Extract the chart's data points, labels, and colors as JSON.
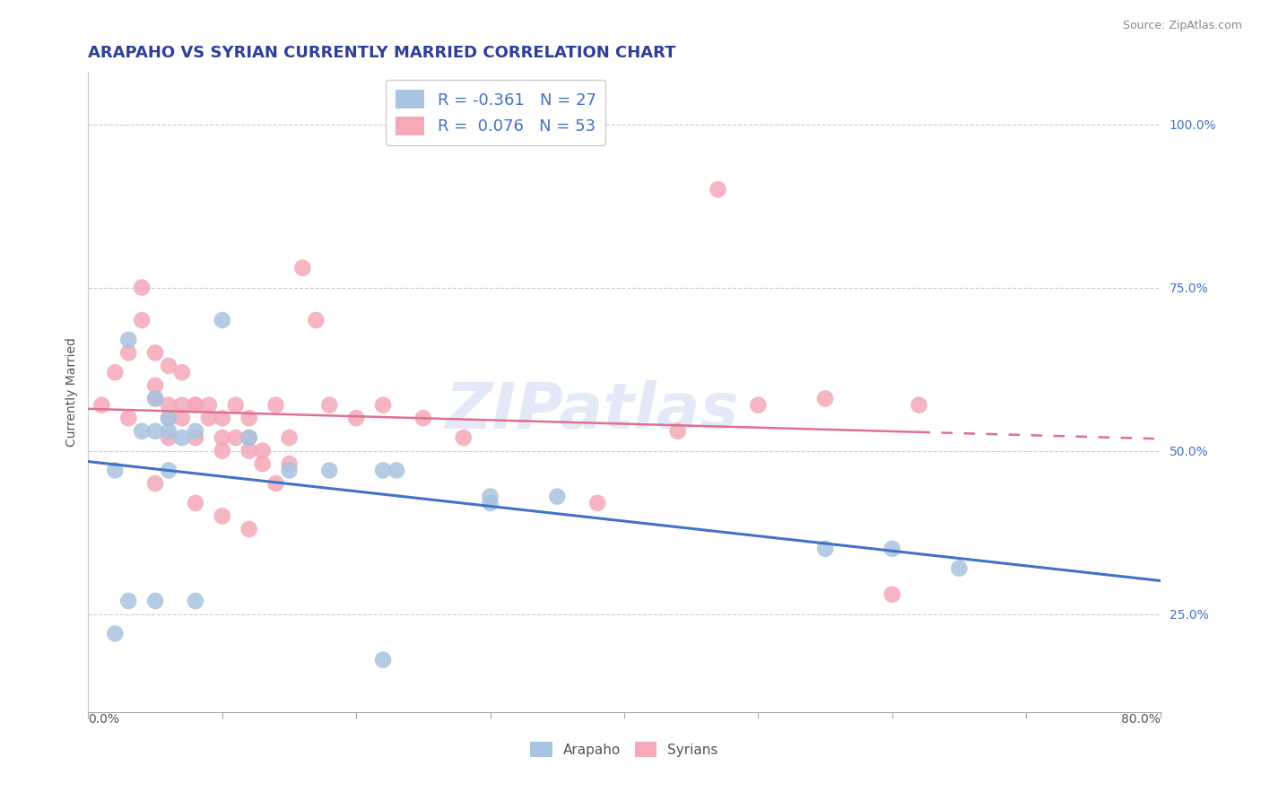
{
  "title": "ARAPAHO VS SYRIAN CURRENTLY MARRIED CORRELATION CHART",
  "source": "Source: ZipAtlas.com",
  "ylabel": "Currently Married",
  "ytick_labels": [
    "100.0%",
    "75.0%",
    "50.0%",
    "25.0%"
  ],
  "ytick_values": [
    1.0,
    0.75,
    0.5,
    0.25
  ],
  "xlim": [
    0.0,
    0.8
  ],
  "ylim": [
    0.1,
    1.08
  ],
  "arapaho_color": "#a8c4e0",
  "syrians_color": "#f4a8b8",
  "arapaho_line_color": "#4472c4",
  "syrians_line_color": "#e07090",
  "arapaho_x": [
    0.02,
    0.03,
    0.04,
    0.05,
    0.05,
    0.06,
    0.06,
    0.07,
    0.08,
    0.1,
    0.12,
    0.15,
    0.18,
    0.22,
    0.23,
    0.3,
    0.3,
    0.35,
    0.55,
    0.6,
    0.65,
    0.02,
    0.05,
    0.08,
    0.22,
    0.03,
    0.06
  ],
  "arapaho_y": [
    0.47,
    0.67,
    0.53,
    0.58,
    0.53,
    0.55,
    0.47,
    0.52,
    0.53,
    0.7,
    0.52,
    0.47,
    0.47,
    0.47,
    0.47,
    0.43,
    0.42,
    0.43,
    0.35,
    0.35,
    0.32,
    0.22,
    0.27,
    0.27,
    0.18,
    0.27,
    0.53
  ],
  "syrians_x": [
    0.01,
    0.02,
    0.03,
    0.03,
    0.04,
    0.04,
    0.05,
    0.05,
    0.05,
    0.06,
    0.06,
    0.06,
    0.06,
    0.07,
    0.07,
    0.07,
    0.08,
    0.08,
    0.08,
    0.09,
    0.09,
    0.1,
    0.1,
    0.1,
    0.11,
    0.11,
    0.12,
    0.12,
    0.12,
    0.13,
    0.13,
    0.14,
    0.15,
    0.15,
    0.16,
    0.17,
    0.18,
    0.2,
    0.22,
    0.25,
    0.28,
    0.38,
    0.44,
    0.47,
    0.55,
    0.6,
    0.62,
    0.5,
    0.05,
    0.08,
    0.1,
    0.12,
    0.14
  ],
  "syrians_y": [
    0.57,
    0.62,
    0.65,
    0.55,
    0.7,
    0.75,
    0.58,
    0.65,
    0.6,
    0.63,
    0.57,
    0.55,
    0.52,
    0.62,
    0.57,
    0.55,
    0.57,
    0.52,
    0.57,
    0.57,
    0.55,
    0.52,
    0.55,
    0.5,
    0.57,
    0.52,
    0.52,
    0.5,
    0.55,
    0.5,
    0.48,
    0.57,
    0.52,
    0.48,
    0.78,
    0.7,
    0.57,
    0.55,
    0.57,
    0.55,
    0.52,
    0.42,
    0.53,
    0.9,
    0.58,
    0.28,
    0.57,
    0.57,
    0.45,
    0.42,
    0.4,
    0.38,
    0.45
  ],
  "background_color": "#ffffff",
  "grid_color": "#cccccc",
  "watermark": "ZIPatlas"
}
